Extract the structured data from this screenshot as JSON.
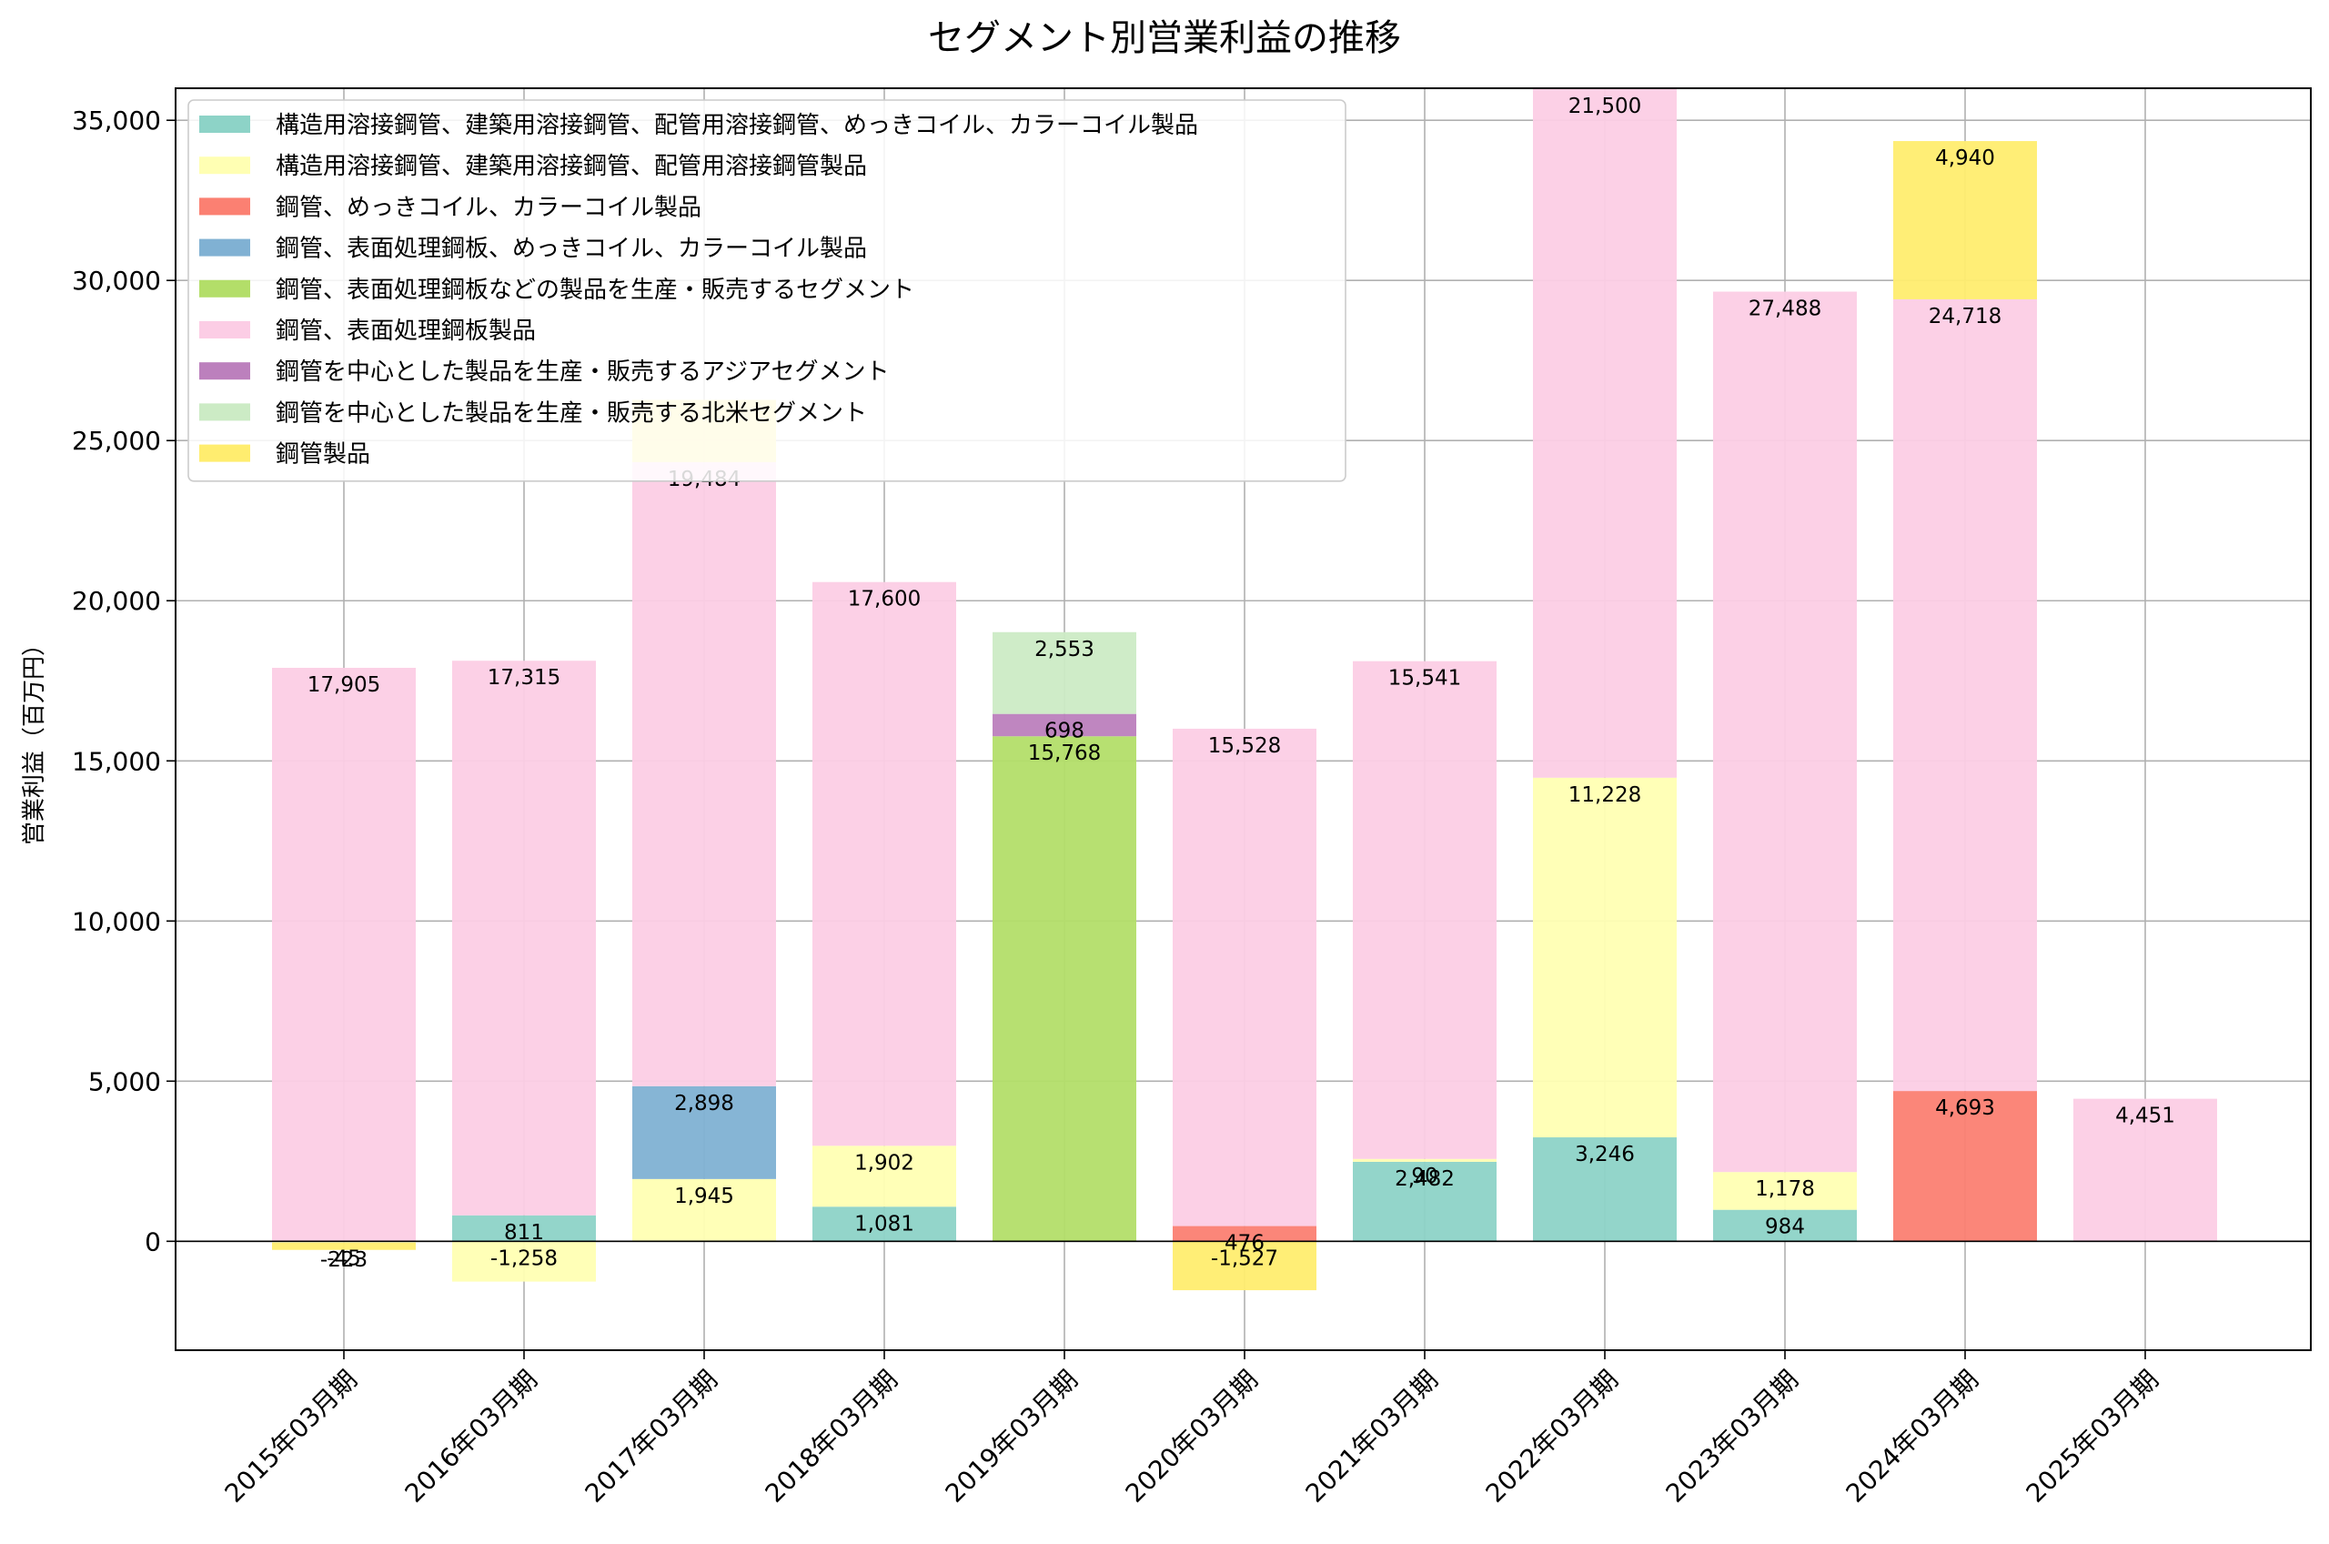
{
  "chart_data": {
    "type": "bar",
    "stacked": true,
    "title": "セグメント別営業利益の推移",
    "xlabel": "",
    "ylabel": "営業利益（百万円）",
    "ylim": [
      -3400,
      36000
    ],
    "yticks": [
      0,
      5000,
      10000,
      15000,
      20000,
      25000,
      30000,
      35000
    ],
    "ytick_labels": [
      "0",
      "5,000",
      "10,000",
      "15,000",
      "20,000",
      "25,000",
      "30,000",
      "35,000"
    ],
    "grid": true,
    "legend_position": "top-left",
    "categories": [
      "2015年03月期",
      "2016年03月期",
      "2017年03月期",
      "2018年03月期",
      "2019年03月期",
      "2020年03月期",
      "2021年03月期",
      "2022年03月期",
      "2023年03月期",
      "2024年03月期",
      "2025年03月期"
    ],
    "series": [
      {
        "name": "構造用溶接鋼管、建築用溶接鋼管、配管用溶接鋼管、めっきコイル、カラーコイル製品",
        "color": "#8dd3c7",
        "values": [
          null,
          811,
          null,
          1081,
          null,
          null,
          2482,
          3246,
          984,
          null,
          null
        ],
        "labels": [
          null,
          "811",
          null,
          "1,081",
          null,
          null,
          "2,482",
          "3,246",
          "984",
          null,
          null
        ]
      },
      {
        "name": "構造用溶接鋼管、建築用溶接鋼管、配管用溶接鋼管製品",
        "color": "#ffffb3",
        "values": [
          -45,
          -1258,
          1945,
          1902,
          null,
          null,
          90,
          11228,
          1178,
          null,
          null
        ],
        "labels": [
          "-45",
          "-1,258",
          "1,945",
          "1,902",
          null,
          null,
          "90",
          "11,228",
          "1,178",
          null,
          null
        ]
      },
      {
        "name": "鋼管、めっきコイル、カラーコイル製品",
        "color": "#fb8072",
        "values": [
          null,
          null,
          null,
          null,
          null,
          476,
          null,
          null,
          null,
          4693,
          null
        ],
        "labels": [
          null,
          null,
          null,
          null,
          null,
          "476",
          null,
          null,
          null,
          "4,693",
          null
        ]
      },
      {
        "name": "鋼管、表面処理鋼板、めっきコイル、カラーコイル製品",
        "color": "#80b1d3",
        "values": [
          null,
          null,
          2898,
          null,
          null,
          null,
          null,
          null,
          null,
          null,
          null
        ],
        "labels": [
          null,
          null,
          "2,898",
          null,
          null,
          null,
          null,
          null,
          null,
          null,
          null
        ]
      },
      {
        "name": "鋼管、表面処理鋼板などの製品を生産・販売するセグメント",
        "color": "#b3de69",
        "values": [
          null,
          null,
          null,
          null,
          15768,
          null,
          null,
          null,
          null,
          null,
          null
        ],
        "labels": [
          null,
          null,
          null,
          null,
          "15,768",
          null,
          null,
          null,
          null,
          null,
          null
        ]
      },
      {
        "name": "鋼管、表面処理鋼板製品",
        "color": "#fccde5",
        "values": [
          17905,
          17315,
          19484,
          17600,
          null,
          15528,
          15541,
          21500,
          27488,
          24718,
          4451
        ],
        "labels": [
          "17,905",
          "17,315",
          "19,484",
          "17,600",
          null,
          "15,528",
          "15,541",
          "21,500",
          "27,488",
          "24,718",
          "4,451"
        ]
      },
      {
        "name": "鋼管を中心とした製品を生産・販売するアジアセグメント",
        "color": "#bc80bd",
        "values": [
          null,
          null,
          null,
          null,
          698,
          null,
          null,
          null,
          null,
          null,
          null
        ],
        "labels": [
          null,
          null,
          null,
          null,
          "698",
          null,
          null,
          null,
          null,
          null,
          null
        ]
      },
      {
        "name": "鋼管を中心とした製品を生産・販売する北米セグメント",
        "color": "#ccebc5",
        "values": [
          null,
          null,
          null,
          null,
          2553,
          null,
          null,
          null,
          null,
          null,
          null
        ],
        "labels": [
          null,
          null,
          null,
          null,
          "2,553",
          null,
          null,
          null,
          null,
          null,
          null
        ]
      },
      {
        "name": "鋼管製品",
        "color": "#ffed6f",
        "values": [
          -223,
          null,
          1945,
          null,
          null,
          -1527,
          null,
          null,
          null,
          4940,
          null
        ],
        "labels": [
          "-223",
          null,
          null,
          null,
          null,
          "-1,527",
          null,
          null,
          null,
          "4,940",
          null
        ]
      }
    ]
  }
}
